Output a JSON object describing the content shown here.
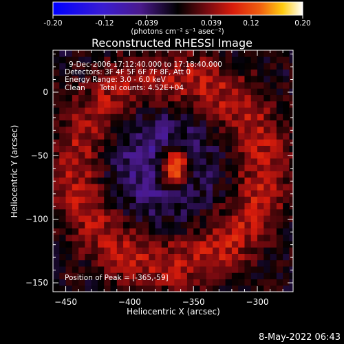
{
  "colorbar": {
    "ticks": [
      "-0.20",
      "-0.12",
      "-0.039",
      "0.039",
      "0.12",
      "0.20"
    ],
    "unit_label": "(photons cm⁻² s⁻¹ asec⁻²)"
  },
  "annotations": {
    "time_range": "9-Dec-2006 17:12:40.000 to 17:18:40.000",
    "detectors": "Detectors: 3F 4F 5F 6F 7F 8F, Att 0",
    "energy": "Energy Range: 3.0 - 6.0 keV",
    "method": "Clean",
    "counts": "Total counts: 4.52E+04",
    "peak": "Position of Peak = [-365,-59]"
  },
  "footer": {
    "timestamp": "8-May-2022 06:43"
  },
  "chart_data": {
    "type": "heatmap",
    "title": "Reconstructed RHESSI Image",
    "xlabel": "Heliocentric X (arcsec)",
    "ylabel": "Heliocentric Y (arcsec)",
    "xlim": [
      -460,
      -272
    ],
    "ylim": [
      -157,
      33
    ],
    "x_ticks": [
      -450,
      -400,
      -350,
      -300
    ],
    "y_ticks": [
      0,
      -50,
      -100,
      -150
    ],
    "color_range": [
      -0.2,
      0.2
    ],
    "colormap": "rainbow-diverging (blue-purple-black-red-orange-yellow-white)",
    "peak": {
      "x": -365,
      "y": -59
    },
    "features": [
      {
        "name": "compact source",
        "center": [
          -365,
          -59
        ],
        "value": 0.2
      },
      {
        "name": "ring",
        "center": [
          -368,
          -62
        ],
        "radius_arcsec": 72,
        "value": 0.075
      },
      {
        "name": "inner negative region",
        "center": [
          -380,
          -55
        ],
        "value": -0.06
      }
    ]
  }
}
